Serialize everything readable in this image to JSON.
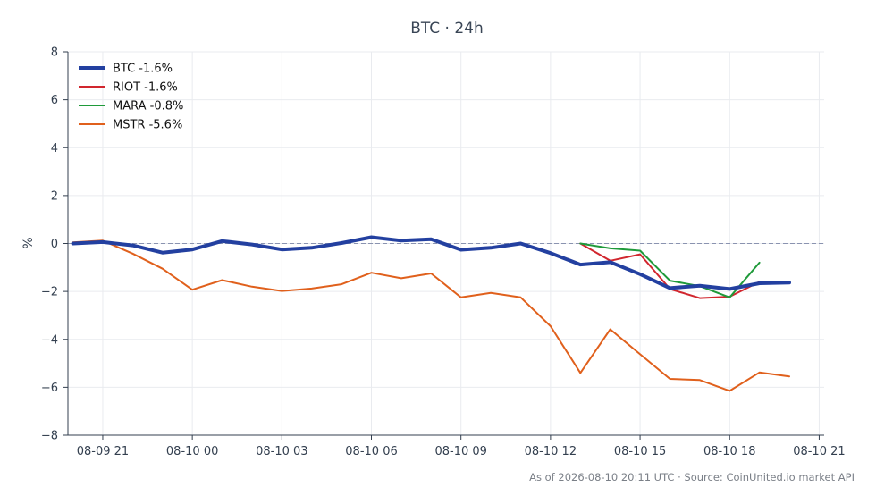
{
  "chart_data": {
    "type": "line",
    "title": "BTC · 24h",
    "xlabel": "",
    "ylabel": "%",
    "ylim": [
      -8,
      8
    ],
    "xlim": [
      "2026-08-09 19:50",
      "2026-08-10 21:10"
    ],
    "y_ticks": [
      -8,
      -6,
      -4,
      -2,
      0,
      2,
      4,
      6,
      8
    ],
    "x_ticks": [
      {
        "t": "2026-08-09 21:00",
        "label": "08-09 21"
      },
      {
        "t": "2026-08-10 00:00",
        "label": "08-10 00"
      },
      {
        "t": "2026-08-10 03:00",
        "label": "08-10 03"
      },
      {
        "t": "2026-08-10 06:00",
        "label": "08-10 06"
      },
      {
        "t": "2026-08-10 09:00",
        "label": "08-10 09"
      },
      {
        "t": "2026-08-10 12:00",
        "label": "08-10 12"
      },
      {
        "t": "2026-08-10 15:00",
        "label": "08-10 15"
      },
      {
        "t": "2026-08-10 18:00",
        "label": "08-10 18"
      },
      {
        "t": "2026-08-10 21:00",
        "label": "08-10 21"
      }
    ],
    "grid": true,
    "reference_line": {
      "y": 0,
      "style": "dashed",
      "color": "#8a93b0"
    },
    "legend_position": "top-left",
    "series": [
      {
        "name": "BTC -1.6%",
        "color": "#2340a0",
        "emphasis": true,
        "points": [
          [
            "2026-08-09 20:00",
            0.0
          ],
          [
            "2026-08-09 21:00",
            0.06
          ],
          [
            "2026-08-09 22:00",
            -0.08
          ],
          [
            "2026-08-09 23:00",
            -0.38
          ],
          [
            "2026-08-10 00:00",
            -0.25
          ],
          [
            "2026-08-10 01:00",
            0.1
          ],
          [
            "2026-08-10 02:00",
            -0.04
          ],
          [
            "2026-08-10 03:00",
            -0.25
          ],
          [
            "2026-08-10 04:00",
            -0.18
          ],
          [
            "2026-08-10 05:00",
            0.02
          ],
          [
            "2026-08-10 06:00",
            0.26
          ],
          [
            "2026-08-10 07:00",
            0.12
          ],
          [
            "2026-08-10 08:00",
            0.18
          ],
          [
            "2026-08-10 09:00",
            -0.26
          ],
          [
            "2026-08-10 10:00",
            -0.18
          ],
          [
            "2026-08-10 11:00",
            0.0
          ],
          [
            "2026-08-10 12:00",
            -0.4
          ],
          [
            "2026-08-10 13:00",
            -0.88
          ],
          [
            "2026-08-10 14:00",
            -0.78
          ],
          [
            "2026-08-10 15:00",
            -1.28
          ],
          [
            "2026-08-10 16:00",
            -1.86
          ],
          [
            "2026-08-10 17:00",
            -1.76
          ],
          [
            "2026-08-10 18:00",
            -1.9
          ],
          [
            "2026-08-10 19:00",
            -1.66
          ],
          [
            "2026-08-10 20:00",
            -1.63
          ]
        ]
      },
      {
        "name": "RIOT -1.6%",
        "color": "#d1262e",
        "points": [
          [
            "2026-08-10 13:00",
            0.0
          ],
          [
            "2026-08-10 14:00",
            -0.72
          ],
          [
            "2026-08-10 15:00",
            -0.45
          ],
          [
            "2026-08-10 16:00",
            -1.9
          ],
          [
            "2026-08-10 17:00",
            -2.28
          ],
          [
            "2026-08-10 18:00",
            -2.22
          ],
          [
            "2026-08-10 19:00",
            -1.6
          ]
        ]
      },
      {
        "name": "MARA -0.8%",
        "color": "#1f9a3a",
        "points": [
          [
            "2026-08-10 13:00",
            0.0
          ],
          [
            "2026-08-10 14:00",
            -0.2
          ],
          [
            "2026-08-10 15:00",
            -0.3
          ],
          [
            "2026-08-10 16:00",
            -1.55
          ],
          [
            "2026-08-10 17:00",
            -1.78
          ],
          [
            "2026-08-10 18:00",
            -2.25
          ],
          [
            "2026-08-10 19:00",
            -0.8
          ]
        ]
      },
      {
        "name": "MSTR -5.6%",
        "color": "#e0601c",
        "points": [
          [
            "2026-08-09 20:00",
            0.05
          ],
          [
            "2026-08-09 21:00",
            0.12
          ],
          [
            "2026-08-09 22:00",
            -0.42
          ],
          [
            "2026-08-09 23:00",
            -1.05
          ],
          [
            "2026-08-10 00:00",
            -1.93
          ],
          [
            "2026-08-10 01:00",
            -1.53
          ],
          [
            "2026-08-10 02:00",
            -1.8
          ],
          [
            "2026-08-10 03:00",
            -1.98
          ],
          [
            "2026-08-10 04:00",
            -1.88
          ],
          [
            "2026-08-10 05:00",
            -1.7
          ],
          [
            "2026-08-10 06:00",
            -1.22
          ],
          [
            "2026-08-10 07:00",
            -1.45
          ],
          [
            "2026-08-10 08:00",
            -1.25
          ],
          [
            "2026-08-10 09:00",
            -2.25
          ],
          [
            "2026-08-10 10:00",
            -2.06
          ],
          [
            "2026-08-10 11:00",
            -2.25
          ],
          [
            "2026-08-10 12:00",
            -3.45
          ],
          [
            "2026-08-10 13:00",
            -5.4
          ],
          [
            "2026-08-10 14:00",
            -3.58
          ],
          [
            "2026-08-10 15:00",
            -4.62
          ],
          [
            "2026-08-10 16:00",
            -5.65
          ],
          [
            "2026-08-10 17:00",
            -5.7
          ],
          [
            "2026-08-10 18:00",
            -6.15
          ],
          [
            "2026-08-10 19:00",
            -5.38
          ],
          [
            "2026-08-10 20:00",
            -5.55
          ]
        ]
      }
    ]
  },
  "footer": "As of 2026-08-10 20:11 UTC · Source: CoinUnited.io market API"
}
